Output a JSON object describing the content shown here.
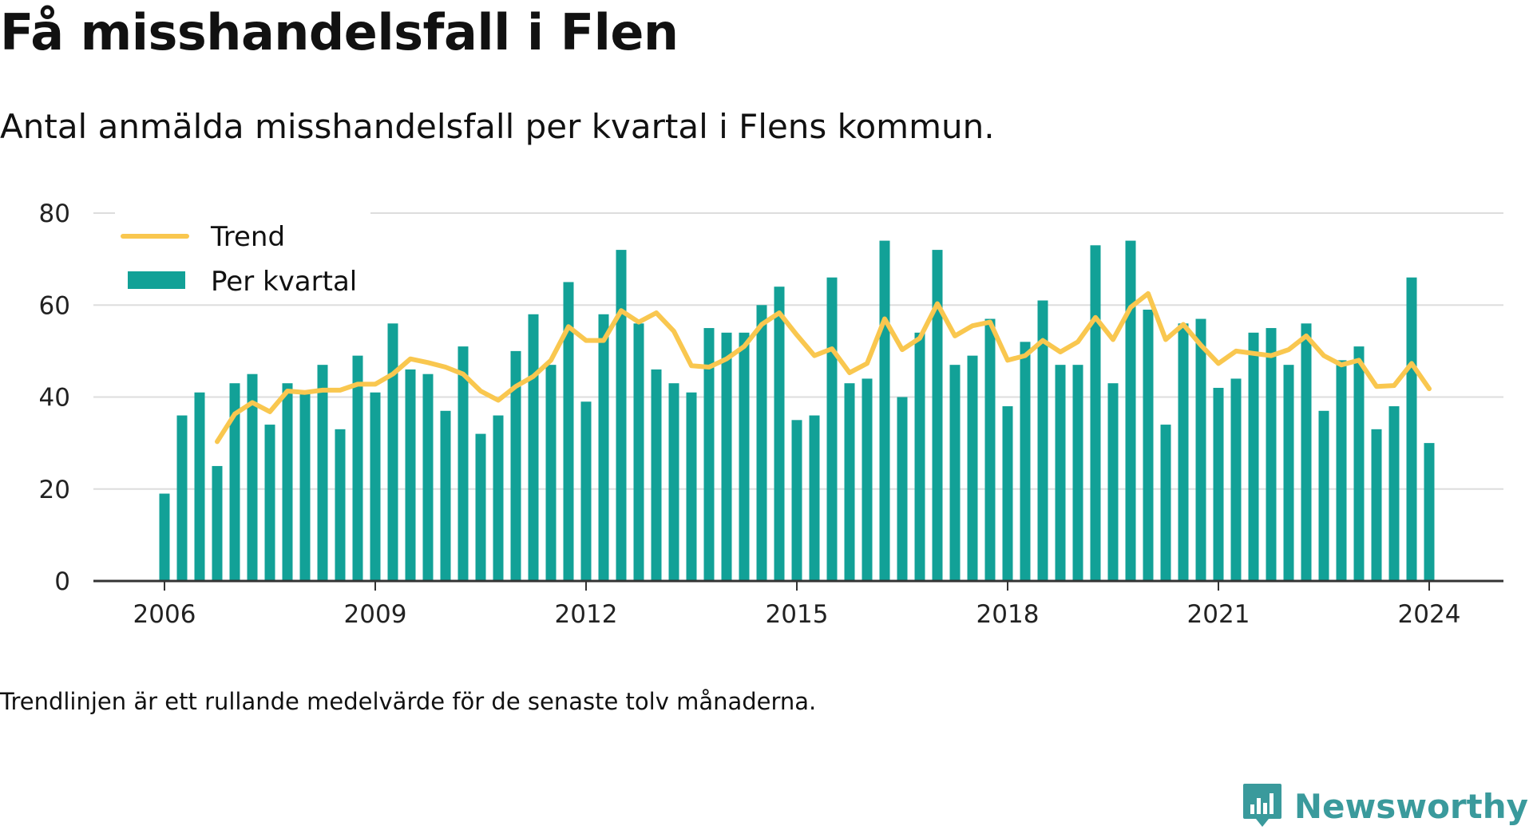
{
  "header": {
    "title": "Få misshandelsfall i Flen",
    "subtitle": "Antal anmälda misshandelsfall per kvartal i Flens kommun."
  },
  "footnote": "Trendlinjen är ett rullande medelvärde för de senaste tolv månaderna.",
  "brand": {
    "name": "Newsworthy",
    "icon": "newsworthy-logo-icon",
    "color": "#3a9a9c"
  },
  "colors": {
    "bar": "#12a197",
    "trend": "#f9c74f",
    "grid": "#dddddd",
    "axis": "#333333"
  },
  "chart_data": {
    "type": "bar",
    "x_start": "2006 Q1",
    "x_ticks": [
      "2006",
      "2009",
      "2012",
      "2015",
      "2018",
      "2021",
      "2024"
    ],
    "y_ticks": [
      "0",
      "20",
      "40",
      "60",
      "80"
    ],
    "ylim": [
      0,
      80
    ],
    "grid": true,
    "legend_position": "top-left",
    "series": [
      {
        "name": "Per kvartal",
        "type": "bar",
        "values": [
          19,
          36,
          41,
          25,
          43,
          45,
          34,
          43,
          41,
          47,
          33,
          49,
          41,
          56,
          46,
          45,
          37,
          51,
          32,
          36,
          50,
          58,
          47,
          65,
          39,
          58,
          72,
          56,
          46,
          43,
          41,
          55,
          54,
          54,
          60,
          64,
          35,
          36,
          66,
          43,
          44,
          74,
          40,
          54,
          72,
          47,
          49,
          57,
          38,
          52,
          61,
          47,
          47,
          73,
          43,
          74,
          59,
          34,
          56,
          57,
          42,
          44,
          54,
          55,
          47,
          56,
          37,
          48,
          51,
          33,
          38,
          66,
          30
        ]
      },
      {
        "name": "Trend",
        "type": "line",
        "start_index": 3,
        "values": [
          30.3,
          36.3,
          38.8,
          36.8,
          41.3,
          41,
          41.5,
          41.5,
          42.8,
          42.8,
          45,
          48.3,
          47.5,
          46.5,
          45,
          41.3,
          39.3,
          42.3,
          44.5,
          48,
          55.3,
          52.3,
          52.3,
          58.8,
          56.3,
          58.3,
          54.3,
          46.8,
          46.5,
          48.3,
          51,
          55.8,
          58.3,
          53.5,
          49,
          50.5,
          45.3,
          47.3,
          57,
          50.3,
          52.8,
          60.3,
          53.3,
          55.5,
          56.3,
          48,
          49,
          52.3,
          49.8,
          52,
          57.3,
          52.5,
          59.5,
          62.5,
          52.5,
          55.8,
          51.3,
          47.3,
          50,
          49.5,
          49,
          50.3,
          53.3,
          49,
          47,
          48,
          42.3,
          42.5,
          47.3,
          41.8
        ]
      }
    ]
  }
}
